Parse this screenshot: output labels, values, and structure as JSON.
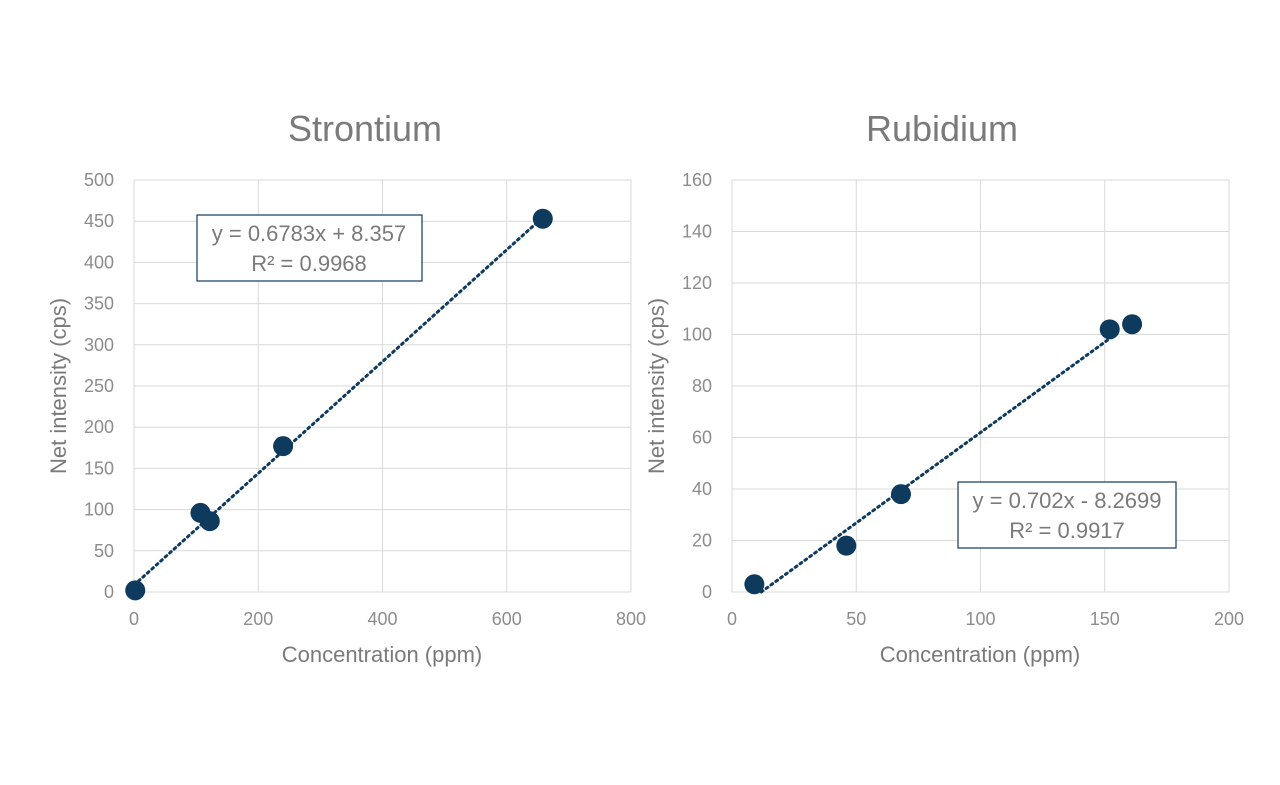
{
  "chart_data": [
    {
      "type": "scatter",
      "title": "Strontium",
      "xlabel": "Concentration (ppm)",
      "ylabel": "Net intensity (cps)",
      "xlim": [
        0,
        800
      ],
      "ylim": [
        0,
        500
      ],
      "xticks": [
        0,
        200,
        400,
        600,
        800
      ],
      "yticks": [
        0,
        50,
        100,
        150,
        200,
        250,
        300,
        350,
        400,
        450,
        500
      ],
      "grid": true,
      "points": [
        {
          "x": 2,
          "y": 2
        },
        {
          "x": 107,
          "y": 96
        },
        {
          "x": 122,
          "y": 86
        },
        {
          "x": 240,
          "y": 177
        },
        {
          "x": 658,
          "y": 453
        }
      ],
      "trendline": {
        "slope": 0.6783,
        "intercept": 8.357,
        "x_range": [
          0,
          660
        ],
        "equation": "y = 0.6783x + 8.357",
        "r_squared": "R² = 0.9968"
      },
      "colors": {
        "marker": "#0e3a5e",
        "grid": "#d9d9d9",
        "text": "#7a7a7a"
      }
    },
    {
      "type": "scatter",
      "title": "Rubidium",
      "xlabel": "Concentration (ppm)",
      "ylabel": "Net intensity (cps)",
      "xlim": [
        0,
        200
      ],
      "ylim": [
        0,
        160
      ],
      "xticks": [
        0,
        50,
        100,
        150,
        200
      ],
      "yticks": [
        0,
        20,
        40,
        60,
        80,
        100,
        120,
        140,
        160
      ],
      "grid": true,
      "points": [
        {
          "x": 9,
          "y": 3
        },
        {
          "x": 46,
          "y": 18
        },
        {
          "x": 68,
          "y": 38
        },
        {
          "x": 152,
          "y": 102
        },
        {
          "x": 161,
          "y": 104
        }
      ],
      "trendline": {
        "slope": 0.702,
        "intercept": -8.2699,
        "x_range": [
          11.78,
          152
        ],
        "equation": "y = 0.702x - 8.2699",
        "r_squared": "R² = 0.9917"
      },
      "colors": {
        "marker": "#0e3a5e",
        "grid": "#d9d9d9",
        "text": "#7a7a7a"
      }
    }
  ]
}
